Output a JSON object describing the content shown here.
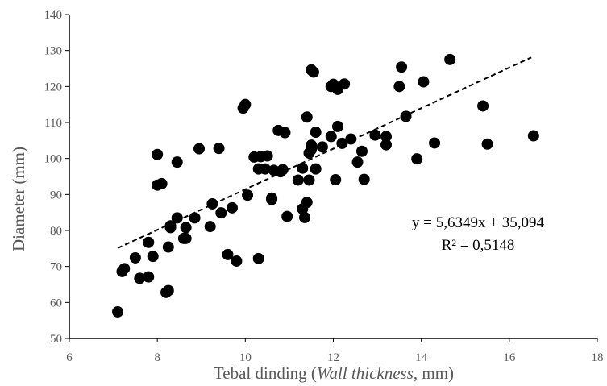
{
  "chart_data": {
    "type": "scatter",
    "title": "",
    "xlabel_prefix": "Tebal dinding (",
    "xlabel_italic": "Wall thickness",
    "xlabel_suffix": ", mm)",
    "ylabel": "Diameter (mm)",
    "xlim": [
      6,
      18
    ],
    "ylim": [
      50,
      140
    ],
    "xticks": [
      6,
      8,
      10,
      12,
      14,
      16,
      18
    ],
    "yticks": [
      50,
      60,
      70,
      80,
      90,
      100,
      110,
      120,
      130,
      140
    ],
    "grid": false,
    "legend": "none",
    "marker_color": "#000000",
    "trendline": {
      "slope": 5.6349,
      "intercept": 35.094,
      "x_start": 7.1,
      "x_end": 16.5,
      "style": "dashed",
      "equation_text": "y = 5,6349x + 35,094",
      "r2_text": "R² = 0,5148"
    },
    "points": [
      [
        7.1,
        57.4
      ],
      [
        7.2,
        68.6
      ],
      [
        7.25,
        69.4
      ],
      [
        7.5,
        72.4
      ],
      [
        7.6,
        66.7
      ],
      [
        7.8,
        67.1
      ],
      [
        7.8,
        76.7
      ],
      [
        7.9,
        72.8
      ],
      [
        8.0,
        101.1
      ],
      [
        8.0,
        92.6
      ],
      [
        8.1,
        93.0
      ],
      [
        8.2,
        62.8
      ],
      [
        8.25,
        63.3
      ],
      [
        8.25,
        75.4
      ],
      [
        8.3,
        81.3
      ],
      [
        8.3,
        80.8
      ],
      [
        8.45,
        99.0
      ],
      [
        8.45,
        83.5
      ],
      [
        8.6,
        77.8
      ],
      [
        8.65,
        80.8
      ],
      [
        8.65,
        77.8
      ],
      [
        8.85,
        83.5
      ],
      [
        8.95,
        102.7
      ],
      [
        9.2,
        81.1
      ],
      [
        9.25,
        87.4
      ],
      [
        9.4,
        102.8
      ],
      [
        9.45,
        84.9
      ],
      [
        9.6,
        73.3
      ],
      [
        9.7,
        86.3
      ],
      [
        9.8,
        71.5
      ],
      [
        9.95,
        114.0
      ],
      [
        10.0,
        115.0
      ],
      [
        10.05,
        89.8
      ],
      [
        10.2,
        100.4
      ],
      [
        10.3,
        72.2
      ],
      [
        10.3,
        97.1
      ],
      [
        10.35,
        100.5
      ],
      [
        10.45,
        97.1
      ],
      [
        10.5,
        100.7
      ],
      [
        10.6,
        89.0
      ],
      [
        10.6,
        88.6
      ],
      [
        10.65,
        96.7
      ],
      [
        10.75,
        107.8
      ],
      [
        10.8,
        96.3
      ],
      [
        10.85,
        96.9
      ],
      [
        10.9,
        107.2
      ],
      [
        10.95,
        83.9
      ],
      [
        11.2,
        94.0
      ],
      [
        11.3,
        97.3
      ],
      [
        11.3,
        86.0
      ],
      [
        11.35,
        83.6
      ],
      [
        11.4,
        87.8
      ],
      [
        11.4,
        111.5
      ],
      [
        11.45,
        94.0
      ],
      [
        11.45,
        101.5
      ],
      [
        11.5,
        102.5
      ],
      [
        11.5,
        103.7
      ],
      [
        11.5,
        124.6
      ],
      [
        11.55,
        124.0
      ],
      [
        11.6,
        97.1
      ],
      [
        11.6,
        107.3
      ],
      [
        11.75,
        103.2
      ],
      [
        11.95,
        106.1
      ],
      [
        11.95,
        120.0
      ],
      [
        12.0,
        120.6
      ],
      [
        12.05,
        94.1
      ],
      [
        12.1,
        119.2
      ],
      [
        12.1,
        108.9
      ],
      [
        12.2,
        104.2
      ],
      [
        12.25,
        120.7
      ],
      [
        12.4,
        105.4
      ],
      [
        12.55,
        99.0
      ],
      [
        12.65,
        102.0
      ],
      [
        12.7,
        94.2
      ],
      [
        12.95,
        106.5
      ],
      [
        13.2,
        106.1
      ],
      [
        13.2,
        103.8
      ],
      [
        13.5,
        120.0
      ],
      [
        13.55,
        125.4
      ],
      [
        13.65,
        111.7
      ],
      [
        13.9,
        99.9
      ],
      [
        14.05,
        121.3
      ],
      [
        14.3,
        104.3
      ],
      [
        14.65,
        127.5
      ],
      [
        15.4,
        114.6
      ],
      [
        15.5,
        104.0
      ],
      [
        16.55,
        106.3
      ]
    ]
  }
}
